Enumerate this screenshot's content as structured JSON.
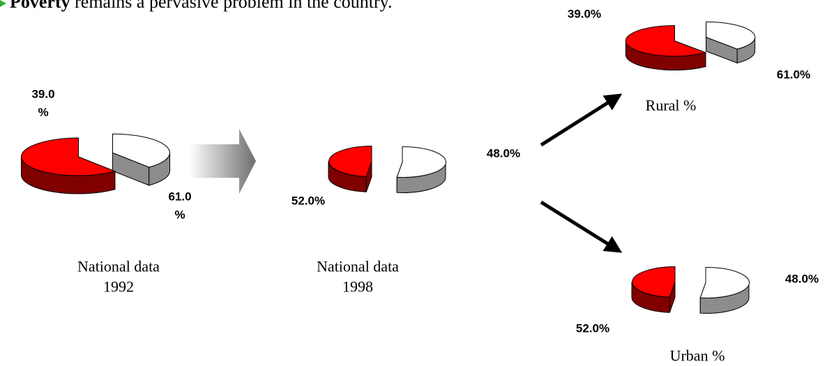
{
  "heading": {
    "bold": "Poverty",
    "rest": "remains a pervasive problem in the country."
  },
  "chart_data": [
    {
      "type": "pie",
      "title": "National data\n1992",
      "values": [
        39,
        61
      ],
      "value_labels": [
        "39.0\n%",
        "61.0\n%"
      ],
      "colors": [
        "#ffffff",
        "#ff0000"
      ],
      "exploded": true
    },
    {
      "type": "pie",
      "title": "National data\n1998",
      "values": [
        52,
        48
      ],
      "value_labels": [
        "52.0%",
        "48.0%"
      ],
      "colors": [
        "#ffffff",
        "#ff0000"
      ],
      "exploded": true
    },
    {
      "type": "pie",
      "title": "Rural %",
      "values": [
        39,
        61
      ],
      "value_labels": [
        "39.0%",
        "61.0%"
      ],
      "colors": [
        "#ffffff",
        "#ff0000"
      ],
      "exploded": true
    },
    {
      "type": "pie",
      "title": "Urban %",
      "values": [
        52,
        48
      ],
      "value_labels": [
        "52.0%",
        "48.0%"
      ],
      "colors": [
        "#ffffff",
        "#ff0000"
      ],
      "exploded": true
    }
  ]
}
